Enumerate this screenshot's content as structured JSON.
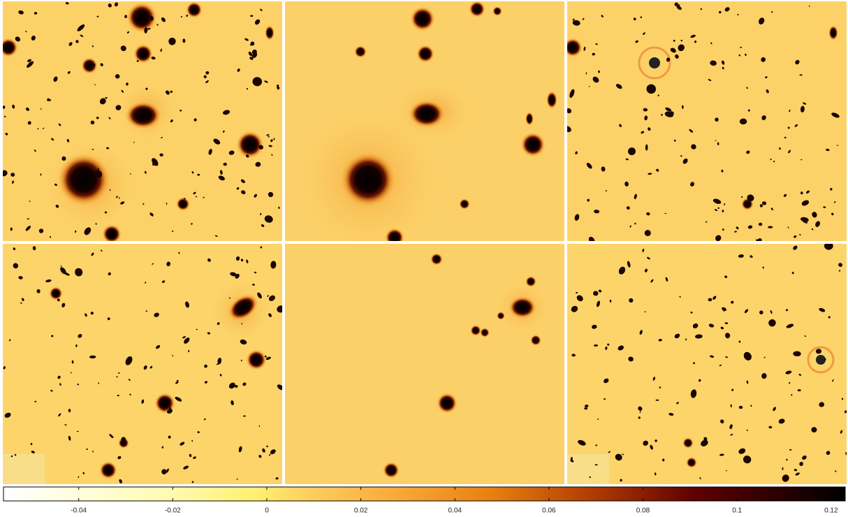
{
  "colorbar": {
    "lim": [
      -0.056,
      0.123
    ],
    "ticks": [
      -0.04,
      -0.02,
      0,
      0.02,
      0.04,
      0.06,
      0.08,
      0.1,
      0.12
    ]
  }
}
